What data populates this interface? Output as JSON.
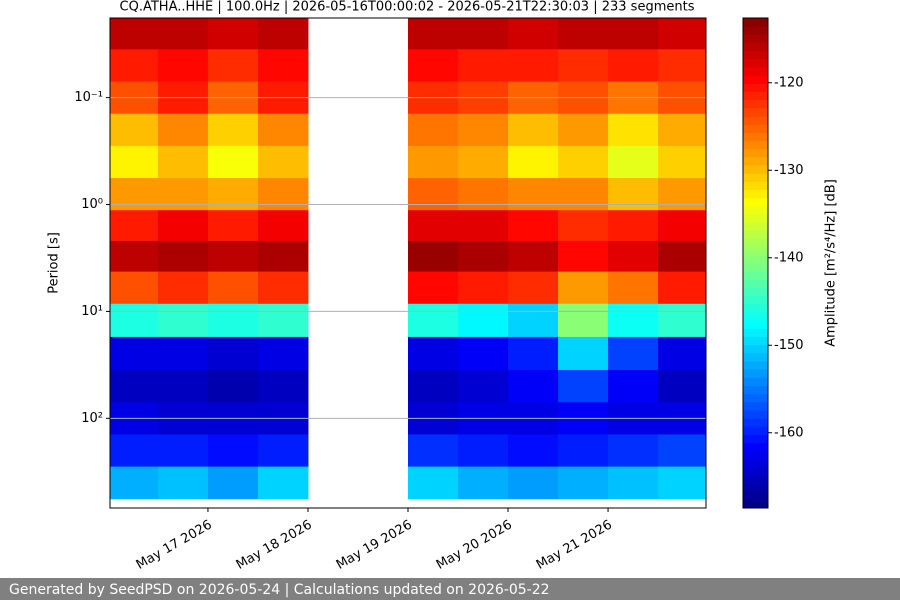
{
  "chart_data": {
    "type": "heatmap",
    "title": "CQ.ATHA..HHE | 100.0Hz | 2026-05-16T00:00:02 - 2026-05-21T22:30:03 | 233 segments",
    "ylabel": "Period [s]",
    "colorbar_label": "Amplitude [m²/s⁴/Hz] [dB]",
    "colormap": "jet",
    "x": [
      "2026-05-16T06:00",
      "2026-05-16T18:00",
      "2026-05-17T06:00",
      "2026-05-17T18:00",
      "2026-05-18T06:00",
      "2026-05-18T18:00",
      "2026-05-19T06:00",
      "2026-05-19T18:00",
      "2026-05-20T06:00",
      "2026-05-20T18:00",
      "2026-05-21T06:00",
      "2026-05-21T18:00"
    ],
    "xlim": [
      "2026-05-16T00:30",
      "2026-05-21T23:30"
    ],
    "xticks": [
      {
        "value": "2026-05-17",
        "label": "May 17 2026"
      },
      {
        "value": "2026-05-18",
        "label": "May 18 2026"
      },
      {
        "value": "2026-05-19",
        "label": "May 19 2026"
      },
      {
        "value": "2026-05-20",
        "label": "May 20 2026"
      },
      {
        "value": "2026-05-21",
        "label": "May 21 2026"
      }
    ],
    "y": [
      0.025,
      0.05,
      0.1,
      0.2,
      0.4,
      0.8,
      1.6,
      3,
      6,
      12,
      25,
      50,
      100,
      200,
      400
    ],
    "ylim": [
      0.018,
      690
    ],
    "ylog": true,
    "yinverted": true,
    "yticks": [
      {
        "value": 0.1,
        "label": "10⁻¹"
      },
      {
        "value": 1,
        "label": "10⁰"
      },
      {
        "value": 10,
        "label": "10¹"
      },
      {
        "value": 100,
        "label": "10²"
      }
    ],
    "grid": true,
    "z": [
      [
        -116,
        -116,
        -117,
        -116,
        null,
        null,
        -116,
        -116,
        -117,
        -116,
        -116,
        -117
      ],
      [
        -121,
        -120,
        -122,
        -120,
        null,
        null,
        -120,
        -121,
        -121,
        -122,
        -121,
        -122
      ],
      [
        -124,
        -121,
        -125,
        -121,
        null,
        null,
        -122,
        -123,
        -125,
        -124,
        -126,
        -124
      ],
      [
        -130,
        -127,
        -131,
        -127,
        null,
        null,
        -126,
        -127,
        -130,
        -128,
        -132,
        -129
      ],
      [
        -133,
        -130,
        -134,
        -130,
        null,
        null,
        -128,
        -129,
        -133,
        -131,
        -135,
        -131
      ],
      [
        -128,
        -128,
        -129,
        -127,
        null,
        null,
        -125,
        -126,
        -127,
        -127,
        -130,
        -128
      ],
      [
        -121,
        -119,
        -121,
        -119,
        null,
        null,
        -118,
        -118,
        -120,
        -122,
        -121,
        -119
      ],
      [
        -116,
        -115,
        -116,
        -115,
        null,
        null,
        -114,
        -115,
        -116,
        -120,
        -118,
        -115
      ],
      [
        -124,
        -122,
        -124,
        -122,
        null,
        null,
        -120,
        -121,
        -122,
        -128,
        -126,
        -121
      ],
      [
        -146,
        -145,
        -146,
        -145,
        null,
        null,
        -146,
        -148,
        -150,
        -140,
        -147,
        -145
      ],
      [
        -163,
        -163,
        -164,
        -163,
        null,
        null,
        -163,
        -162,
        -160,
        -150,
        -158,
        -163
      ],
      [
        -165,
        -165,
        -166,
        -165,
        null,
        null,
        -165,
        -164,
        -162,
        -158,
        -162,
        -165
      ],
      [
        -163,
        -164,
        -164,
        -164,
        null,
        null,
        -164,
        -163,
        -163,
        -162,
        -163,
        -163
      ],
      [
        -160,
        -160,
        -161,
        -160,
        null,
        null,
        -159,
        -160,
        -161,
        -160,
        -159,
        -158
      ],
      [
        -152,
        -151,
        -153,
        -150,
        null,
        null,
        -150,
        -152,
        -153,
        -152,
        -151,
        -150
      ]
    ],
    "clim": [
      -168.6,
      -112.6
    ],
    "cticks": [
      -120,
      -130,
      -140,
      -150,
      -160
    ]
  },
  "footer": "Generated by SeedPSD on 2026-05-24 | Calculations updated on 2026-05-22"
}
